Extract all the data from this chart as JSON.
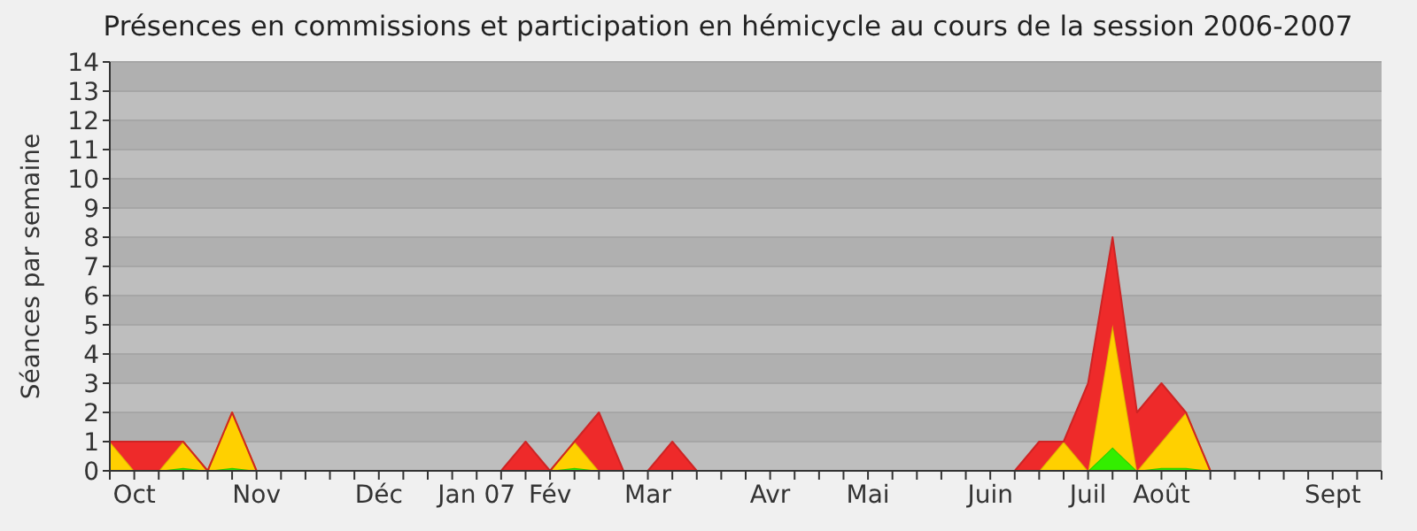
{
  "chart_data": {
    "type": "area",
    "stacked": true,
    "title": "Présences en commissions et participation en hémicycle au cours de la session 2006-2007",
    "ylabel": "Séances par semaine",
    "categories": [
      null,
      "Oct",
      null,
      null,
      null,
      null,
      "Nov",
      null,
      null,
      null,
      null,
      "Déc",
      null,
      null,
      null,
      "Jan 07",
      null,
      null,
      "Fév",
      null,
      null,
      null,
      "Mar",
      null,
      null,
      null,
      null,
      "Avr",
      null,
      null,
      null,
      "Mai",
      null,
      null,
      null,
      null,
      "Juin",
      null,
      null,
      null,
      "Juil",
      null,
      null,
      "Août",
      null,
      null,
      null,
      null,
      null,
      null,
      "Sept",
      null,
      null
    ],
    "series": [
      {
        "color": "#33ee00",
        "values": [
          0,
          0,
          0,
          0.1,
          0,
          0.1,
          0,
          0,
          0,
          0,
          0,
          0,
          0,
          0,
          0,
          0,
          0,
          0,
          0,
          0.1,
          0,
          0,
          0,
          0,
          0,
          0,
          0,
          0,
          0,
          0,
          0,
          0,
          0,
          0,
          0,
          0,
          0,
          0,
          0,
          0,
          0,
          0.8,
          0,
          0.1,
          0.1,
          0,
          0,
          0,
          0,
          0,
          0,
          0,
          0
        ]
      },
      {
        "color": "#ffd000",
        "values": [
          1,
          0,
          0,
          0.9,
          0,
          1.9,
          0,
          0,
          0,
          0,
          0,
          0,
          0,
          0,
          0,
          0,
          0,
          0,
          0,
          0.9,
          0,
          0,
          0,
          0,
          0,
          0,
          0,
          0,
          0,
          0,
          0,
          0,
          0,
          0,
          0,
          0,
          0,
          0,
          0,
          1,
          0,
          4.2,
          0,
          0.9,
          1.9,
          0,
          0,
          0,
          0,
          0,
          0,
          0,
          0
        ]
      },
      {
        "color": "#ee2a2a",
        "values": [
          0,
          1,
          1,
          0,
          0,
          0,
          0,
          0,
          0,
          0,
          0,
          0,
          0,
          0,
          0,
          0,
          0,
          1,
          0,
          0,
          2,
          0,
          0,
          1,
          0,
          0,
          0,
          0,
          0,
          0,
          0,
          0,
          0,
          0,
          0,
          0,
          0,
          0,
          1,
          0,
          3,
          3,
          2,
          2,
          0,
          0,
          0,
          0,
          0,
          0,
          0,
          0,
          0
        ]
      }
    ],
    "ylim": [
      0,
      14
    ],
    "yticks": [
      0,
      1,
      2,
      3,
      4,
      5,
      6,
      7,
      8,
      9,
      10,
      11,
      12,
      13,
      14
    ],
    "grid": "y"
  }
}
